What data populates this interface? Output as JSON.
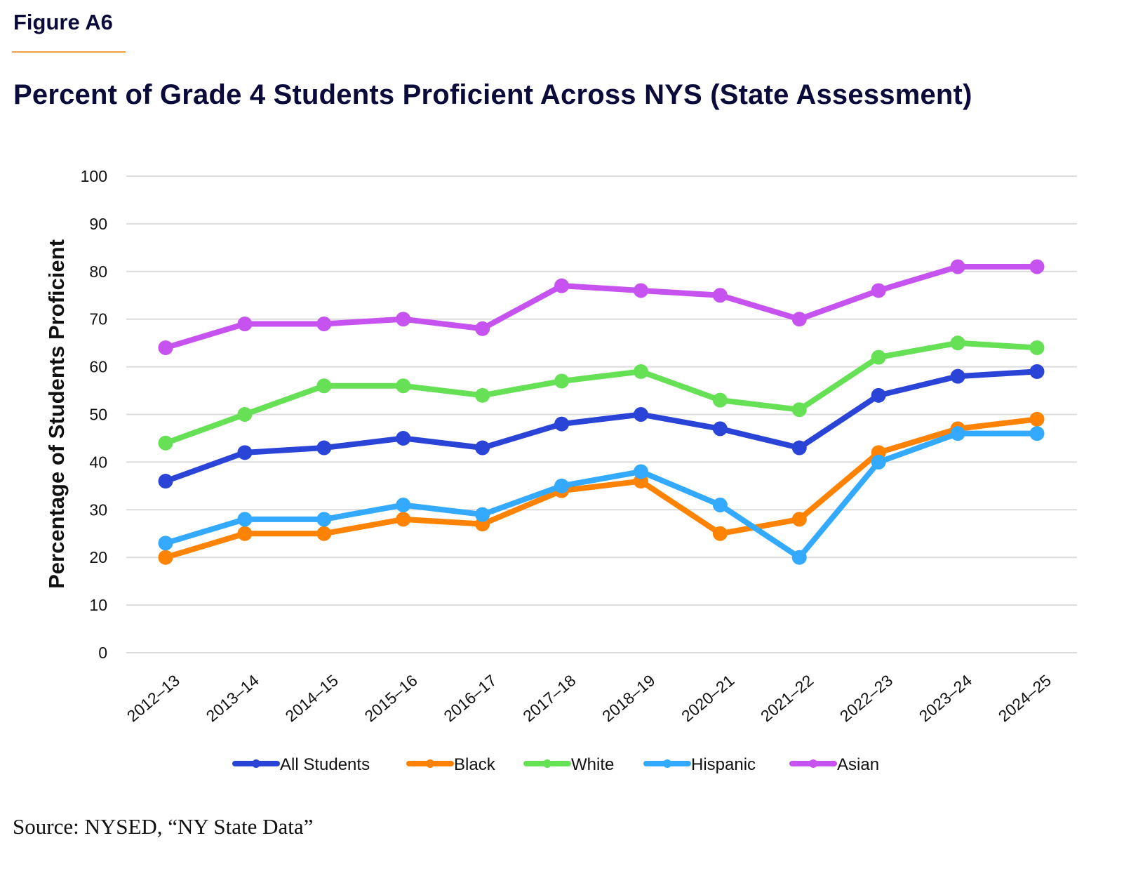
{
  "figure_label": "Figure A6",
  "title": "Percent of Grade 4 Students Proficient Across NYS (State Assessment)",
  "source": "Source: NYSED, “NY State Data”",
  "accent_color": "#f0a040",
  "chart_data": {
    "type": "line",
    "title": "Percent of Grade 4 Students Proficient Across NYS (State Assessment)",
    "xlabel": "",
    "ylabel": "Percentage of Students Proficient",
    "ylim": [
      0,
      100
    ],
    "yticks": [
      0,
      10,
      20,
      30,
      40,
      50,
      60,
      70,
      80,
      90,
      100
    ],
    "grid": true,
    "legend_position": "bottom",
    "categories": [
      "2012–13",
      "2013–14",
      "2014–15",
      "2015–16",
      "2016–17",
      "2017–18",
      "2018–19",
      "2020–21",
      "2021–22",
      "2022–23",
      "2023–24",
      "2024–25"
    ],
    "series": [
      {
        "name": "All Students",
        "color": "#2b44d8",
        "values": [
          36,
          42,
          43,
          45,
          43,
          48,
          50,
          47,
          43,
          54,
          58,
          59
        ]
      },
      {
        "name": "Black",
        "color": "#ff8200",
        "values": [
          20,
          25,
          25,
          28,
          27,
          34,
          36,
          25,
          28,
          42,
          47,
          49
        ]
      },
      {
        "name": "White",
        "color": "#66e055",
        "values": [
          44,
          50,
          56,
          56,
          54,
          57,
          59,
          53,
          51,
          62,
          65,
          64
        ]
      },
      {
        "name": "Hispanic",
        "color": "#33aaff",
        "values": [
          23,
          28,
          28,
          31,
          29,
          35,
          38,
          31,
          20,
          40,
          46,
          46
        ]
      },
      {
        "name": "Asian",
        "color": "#c653f0",
        "values": [
          64,
          69,
          69,
          70,
          68,
          77,
          76,
          75,
          70,
          76,
          81,
          81
        ]
      }
    ]
  }
}
